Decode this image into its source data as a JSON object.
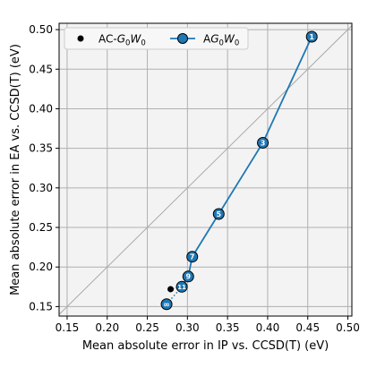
{
  "chart_data": {
    "type": "scatter",
    "xlabel": "Mean absolute error in IP vs. CCSD(T) (eV)",
    "ylabel": "Mean absolute error in EA vs. CCSD(T) (eV)",
    "xlim": [
      0.14,
      0.505
    ],
    "ylim": [
      0.138,
      0.508
    ],
    "x_ticks": [
      0.15,
      0.2,
      0.25,
      0.3,
      0.35,
      0.4,
      0.45,
      0.5
    ],
    "x_tick_labels": [
      "0.15",
      "0.20",
      "0.25",
      "0.30",
      "0.35",
      "0.40",
      "0.45",
      "0.50"
    ],
    "y_ticks": [
      0.15,
      0.2,
      0.25,
      0.3,
      0.35,
      0.4,
      0.45,
      0.5
    ],
    "y_tick_labels": [
      "0.15",
      "0.20",
      "0.25",
      "0.30",
      "0.35",
      "0.40",
      "0.45",
      "0.50"
    ],
    "grid": true,
    "diagonal": true,
    "legend_position": "top-left",
    "legend": [
      {
        "base": "AC-",
        "var1": "G",
        "sub1": "0",
        "var2": "W",
        "sub2": "0",
        "marker": "dot"
      },
      {
        "base": "A",
        "var1": "G",
        "sub1": "0",
        "var2": "W",
        "sub2": "0",
        "marker": "circle"
      }
    ],
    "series": [
      {
        "color": "#1f77b4",
        "points": [
          {
            "x": 0.455,
            "y": 0.491,
            "label": "1"
          },
          {
            "x": 0.394,
            "y": 0.357,
            "label": "3"
          },
          {
            "x": 0.339,
            "y": 0.267,
            "label": "5"
          },
          {
            "x": 0.306,
            "y": 0.213,
            "label": "7"
          },
          {
            "x": 0.301,
            "y": 0.188,
            "label": "9"
          },
          {
            "x": 0.293,
            "y": 0.175,
            "label": "11"
          },
          {
            "x": 0.274,
            "y": 0.153,
            "label": "∞"
          }
        ]
      },
      {
        "color": "#000000",
        "points": [
          {
            "x": 0.279,
            "y": 0.172
          }
        ]
      }
    ]
  }
}
